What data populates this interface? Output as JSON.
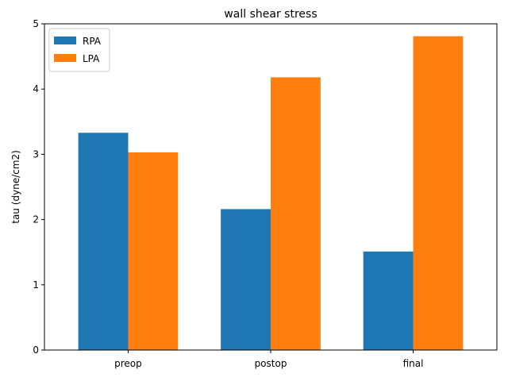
{
  "chart_data": {
    "type": "bar",
    "title": "wall shear stress",
    "xlabel": "",
    "ylabel": "tau (dyne/cm2)",
    "categories": [
      "preop",
      "postop",
      "final"
    ],
    "series": [
      {
        "name": "RPA",
        "values": [
          3.33,
          2.16,
          1.51
        ],
        "color": "#1f77b4"
      },
      {
        "name": "LPA",
        "values": [
          3.03,
          4.18,
          4.81
        ],
        "color": "#ff7f0e"
      }
    ],
    "ylim": [
      0,
      5
    ],
    "yticks": [
      0,
      1,
      2,
      3,
      4,
      5
    ],
    "grid": false,
    "legend_position": "top-left"
  }
}
